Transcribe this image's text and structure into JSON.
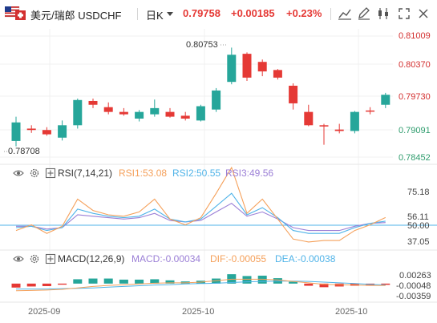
{
  "header": {
    "pair_name": "美元/瑞郎",
    "symbol": "USDCHF",
    "timeframe": "日K",
    "last_price": "0.79758",
    "change": "+0.00185",
    "change_pct": "+0.23%",
    "toolbar_icons": [
      "line-chart-icon",
      "draw-pen-icon",
      "candlestick-type-icon",
      "fullscreen-icon"
    ]
  },
  "main_chart": {
    "price_ticks": [
      "0.81009",
      "0.80370",
      "0.79730",
      "0.79091",
      "0.78452"
    ],
    "high_label": "0.80753",
    "low_label": "0.78708"
  },
  "rsi": {
    "title": "RSI(7,14,21)",
    "rsi1": "RSI1:53.08",
    "rsi2": "RSI2:50.55",
    "rsi3": "RSI3:49.56",
    "ticks": [
      "75.18",
      "56.11",
      "50.00",
      "37.05"
    ]
  },
  "macd": {
    "title": "MACD(12,26,9)",
    "macd": "MACD:-0.00034",
    "dif": "DIF:-0.00055",
    "dea": "DEA:-0.00038",
    "ticks": [
      "0.00263",
      "-0.00048",
      "-0.00359"
    ]
  },
  "x_axis": {
    "labels": [
      "2025-09",
      "2025-10",
      "2025-10"
    ]
  },
  "colors": {
    "up": "#26a69a",
    "down": "#e53935",
    "rsi1": "#f5a05a",
    "rsi2": "#4fb3e8",
    "rsi3": "#9b7fd6",
    "dif": "#f5a05a",
    "dea": "#4fb3e8"
  },
  "chart_data": {
    "type": "candlestick",
    "candles": [
      {
        "o": 0.7879,
        "h": 0.793,
        "l": 0.7868,
        "c": 0.7918
      },
      {
        "o": 0.7905,
        "h": 0.7912,
        "l": 0.7896,
        "c": 0.7902
      },
      {
        "o": 0.7902,
        "h": 0.7908,
        "l": 0.789,
        "c": 0.7893
      },
      {
        "o": 0.7886,
        "h": 0.7922,
        "l": 0.788,
        "c": 0.7912
      },
      {
        "o": 0.7912,
        "h": 0.7968,
        "l": 0.7905,
        "c": 0.7965
      },
      {
        "o": 0.7963,
        "h": 0.7968,
        "l": 0.7948,
        "c": 0.7955
      },
      {
        "o": 0.795,
        "h": 0.796,
        "l": 0.7935,
        "c": 0.794
      },
      {
        "o": 0.794,
        "h": 0.7948,
        "l": 0.7932,
        "c": 0.7935
      },
      {
        "o": 0.7926,
        "h": 0.7944,
        "l": 0.792,
        "c": 0.794
      },
      {
        "o": 0.7935,
        "h": 0.7966,
        "l": 0.793,
        "c": 0.7948
      },
      {
        "o": 0.794,
        "h": 0.7948,
        "l": 0.7928,
        "c": 0.793
      },
      {
        "o": 0.7932,
        "h": 0.794,
        "l": 0.7922,
        "c": 0.7926
      },
      {
        "o": 0.7922,
        "h": 0.7955,
        "l": 0.792,
        "c": 0.7952
      },
      {
        "o": 0.7945,
        "h": 0.799,
        "l": 0.794,
        "c": 0.7985
      },
      {
        "o": 0.8003,
        "h": 0.8075,
        "l": 0.7998,
        "c": 0.806
      },
      {
        "o": 0.8062,
        "h": 0.8065,
        "l": 0.8005,
        "c": 0.8012
      },
      {
        "o": 0.8045,
        "h": 0.805,
        "l": 0.8015,
        "c": 0.8025
      },
      {
        "o": 0.8028,
        "h": 0.803,
        "l": 0.8008,
        "c": 0.8012
      },
      {
        "o": 0.7995,
        "h": 0.8,
        "l": 0.7945,
        "c": 0.7958
      },
      {
        "o": 0.794,
        "h": 0.7955,
        "l": 0.791,
        "c": 0.7912
      },
      {
        "o": 0.7912,
        "h": 0.7915,
        "l": 0.7871,
        "c": 0.791
      },
      {
        "o": 0.7903,
        "h": 0.7915,
        "l": 0.7895,
        "c": 0.79
      },
      {
        "o": 0.79,
        "h": 0.7942,
        "l": 0.7895,
        "c": 0.794
      },
      {
        "o": 0.7943,
        "h": 0.795,
        "l": 0.7935,
        "c": 0.7942
      },
      {
        "o": 0.7955,
        "h": 0.798,
        "l": 0.7948,
        "c": 0.7976
      }
    ],
    "rsi1": [
      44,
      48,
      42,
      47,
      66,
      58,
      55,
      54,
      57,
      66,
      52,
      48,
      53,
      70,
      88,
      56,
      66,
      52,
      38,
      36,
      37,
      37,
      44,
      48,
      53.08
    ],
    "rsi2": [
      46,
      47,
      44,
      46,
      59,
      56,
      54,
      53,
      54,
      59,
      52,
      50,
      52,
      61,
      70,
      55,
      60,
      53,
      44,
      42,
      42,
      42,
      46,
      49,
      50.55
    ],
    "rsi3": [
      47,
      47,
      45,
      46,
      55,
      54,
      53,
      52,
      53,
      56,
      51,
      50,
      51,
      57,
      63,
      54,
      57,
      52,
      46,
      44,
      44,
      44,
      47,
      49,
      49.56
    ],
    "macd_hist": [
      -0.0011,
      -0.0008,
      -0.0007,
      -0.0003,
      0.0012,
      0.0014,
      0.0014,
      0.0011,
      0.0011,
      0.0012,
      0.0009,
      0.0006,
      0.0008,
      0.0014,
      0.0026,
      0.0021,
      0.0022,
      0.0015,
      0.0005,
      -0.0006,
      -0.001,
      -0.0008,
      -0.0006,
      -0.0005,
      -0.00034
    ],
    "macd_dif": [
      -0.002,
      -0.0019,
      -0.0018,
      -0.0016,
      -0.0012,
      -0.0008,
      -0.0005,
      -0.0003,
      -0.0001,
      0.0001,
      0.0002,
      0.0002,
      0.0004,
      0.0008,
      0.0012,
      0.0012,
      0.0012,
      0.001,
      0.0006,
      0.0002,
      -0.0002,
      -0.0003,
      -0.0004,
      -0.0005,
      -0.00055
    ],
    "macd_dea": [
      -0.0015,
      -0.0015,
      -0.0015,
      -0.0014,
      -0.0013,
      -0.0012,
      -0.001,
      -0.0008,
      -0.0006,
      -0.0004,
      -0.0003,
      -0.0001,
      0.0,
      0.0001,
      0.0003,
      0.0005,
      0.0006,
      0.0007,
      0.0007,
      0.0006,
      0.0004,
      0.0002,
      0.0,
      -0.0002,
      -0.00038
    ],
    "price_range": [
      0.78452,
      0.81009
    ],
    "rsi_range": [
      37.05,
      75.18
    ],
    "macd_range": [
      -0.00359,
      0.00263
    ],
    "x_labels_at": [
      2,
      13,
      23
    ]
  }
}
